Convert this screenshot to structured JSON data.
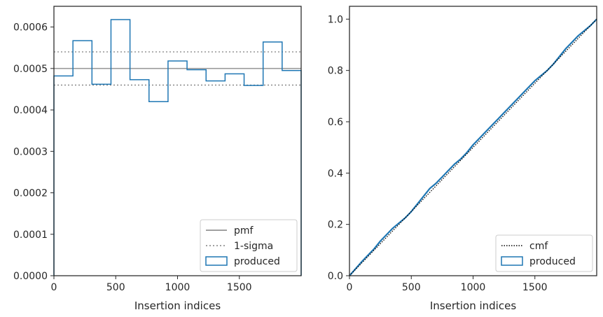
{
  "chart_data": [
    {
      "type": "histogram",
      "xlabel": "Insertion indices",
      "ylabel": "",
      "xlim": [
        0,
        2000
      ],
      "ylim": [
        0,
        0.00065
      ],
      "xticks": [
        0,
        500,
        1000,
        1500
      ],
      "yticks": [
        0,
        0.0001,
        0.0002,
        0.0003,
        0.0004,
        0.0005,
        0.0006
      ],
      "ytick_labels": [
        "0.0000",
        "0.0001",
        "0.0002",
        "0.0003",
        "0.0004",
        "0.0005",
        "0.0006"
      ],
      "grid": false,
      "legend_position": "lower right",
      "legend": [
        "pmf",
        "1-sigma",
        "produced"
      ],
      "pmf": 0.0005,
      "sigma_band": [
        0.00046,
        0.00054
      ],
      "bin_edges": [
        0,
        153.8,
        307.7,
        461.5,
        615.4,
        769.2,
        923.1,
        1076.9,
        1230.8,
        1384.6,
        1538.5,
        1692.3,
        1846.2,
        2000
      ],
      "series": [
        {
          "name": "produced",
          "values": [
            0.000482,
            0.000567,
            0.000462,
            0.000618,
            0.000473,
            0.00042,
            0.000518,
            0.000497,
            0.00047,
            0.000487,
            0.000459,
            0.000564,
            0.000495
          ]
        }
      ],
      "colors": {
        "produced": "#1f77b4",
        "pmf": "#808080",
        "sigma": "#808080"
      }
    },
    {
      "type": "line",
      "xlabel": "Insertion indices",
      "ylabel": "",
      "xlim": [
        0,
        2000
      ],
      "ylim": [
        0,
        1.05
      ],
      "xticks": [
        0,
        500,
        1000,
        1500
      ],
      "yticks": [
        0,
        0.2,
        0.4,
        0.6,
        0.8,
        1.0
      ],
      "ytick_labels": [
        "0.0",
        "0.2",
        "0.4",
        "0.6",
        "0.8",
        "1.0"
      ],
      "grid": false,
      "legend_position": "lower right",
      "legend": [
        "cmf",
        "produced"
      ],
      "series": [
        {
          "name": "cmf",
          "x": [
            0,
            2000
          ],
          "y": [
            0,
            1.0
          ]
        },
        {
          "name": "produced",
          "x": [
            0,
            100,
            150,
            200,
            250,
            300,
            350,
            400,
            450,
            500,
            550,
            600,
            650,
            700,
            750,
            800,
            850,
            900,
            950,
            1000,
            1050,
            1100,
            1150,
            1200,
            1250,
            1300,
            1350,
            1400,
            1450,
            1500,
            1550,
            1600,
            1650,
            1700,
            1750,
            1800,
            1850,
            1900,
            1950,
            2000
          ],
          "y": [
            0,
            0.055,
            0.08,
            0.105,
            0.135,
            0.16,
            0.185,
            0.205,
            0.225,
            0.25,
            0.28,
            0.31,
            0.34,
            0.36,
            0.385,
            0.41,
            0.435,
            0.455,
            0.48,
            0.51,
            0.535,
            0.56,
            0.585,
            0.61,
            0.635,
            0.66,
            0.685,
            0.71,
            0.735,
            0.76,
            0.78,
            0.8,
            0.825,
            0.855,
            0.885,
            0.91,
            0.935,
            0.955,
            0.975,
            1.0
          ]
        }
      ],
      "colors": {
        "produced": "#1f77b4",
        "cmf": "#000000"
      }
    }
  ]
}
